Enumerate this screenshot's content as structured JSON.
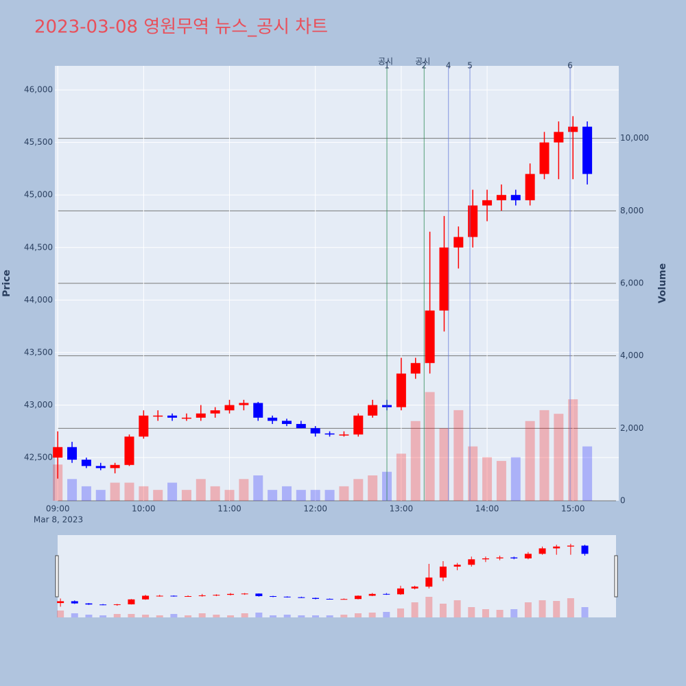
{
  "chart_data": {
    "type": "candlestick",
    "title": "2023-03-08 영원무역 뉴스_공시 차트",
    "y_label": "Price",
    "y2_label": "Volume",
    "x_date_label": "Mar 8, 2023",
    "x": [
      "09:00",
      "09:10",
      "09:20",
      "09:30",
      "09:40",
      "09:50",
      "10:00",
      "10:10",
      "10:20",
      "10:30",
      "10:40",
      "10:50",
      "11:00",
      "11:10",
      "11:20",
      "11:30",
      "11:40",
      "11:50",
      "12:00",
      "12:10",
      "12:20",
      "12:30",
      "12:40",
      "12:50",
      "13:00",
      "13:10",
      "13:20",
      "13:30",
      "13:40",
      "13:50",
      "14:00",
      "14:10",
      "14:20",
      "14:30",
      "14:40",
      "14:50",
      "15:00",
      "15:10"
    ],
    "open": [
      42500,
      42600,
      42480,
      42420,
      42400,
      42430,
      42700,
      42900,
      42900,
      42880,
      42880,
      42920,
      42950,
      43000,
      43020,
      42880,
      42850,
      42820,
      42780,
      42730,
      42720,
      42720,
      42900,
      43000,
      42980,
      43300,
      43400,
      43900,
      44500,
      44600,
      44900,
      44950,
      45000,
      44950,
      45200,
      45500,
      45600,
      45650
    ],
    "high": [
      42750,
      42650,
      42500,
      42450,
      42450,
      42720,
      42950,
      42950,
      42920,
      42920,
      43000,
      42980,
      43050,
      43050,
      43030,
      42900,
      42870,
      42850,
      42800,
      42750,
      42750,
      42920,
      43050,
      43050,
      43450,
      43450,
      44650,
      44800,
      44700,
      45050,
      45050,
      45100,
      45050,
      45300,
      45600,
      45700,
      45750,
      45700
    ],
    "low": [
      42300,
      42450,
      42400,
      42380,
      42350,
      42420,
      42680,
      42850,
      42850,
      42850,
      42850,
      42880,
      42920,
      42950,
      42850,
      42820,
      42800,
      42780,
      42700,
      42700,
      42700,
      42700,
      42880,
      42950,
      42950,
      43250,
      43300,
      43700,
      44300,
      44500,
      44750,
      44850,
      44900,
      44900,
      45150,
      45150,
      45150,
      45100
    ],
    "close": [
      42600,
      42480,
      42420,
      42400,
      42430,
      42700,
      42900,
      42900,
      42880,
      42880,
      42920,
      42950,
      43000,
      43020,
      42880,
      42850,
      42820,
      42780,
      42730,
      42720,
      42720,
      42900,
      43000,
      42980,
      43300,
      43400,
      43900,
      44500,
      44600,
      44900,
      44950,
      45000,
      44950,
      45200,
      45500,
      45600,
      45650,
      45200
    ],
    "volume": [
      1000,
      600,
      400,
      300,
      500,
      500,
      400,
      300,
      500,
      300,
      600,
      400,
      300,
      600,
      700,
      300,
      400,
      300,
      300,
      300,
      400,
      600,
      700,
      800,
      1300,
      2200,
      3000,
      2000,
      2500,
      1500,
      1200,
      1100,
      1200,
      2200,
      2500,
      2400,
      2800,
      1500
    ],
    "up_color": "#ff0000",
    "down_color": "#0000ff",
    "xlim": [
      "08:58",
      "15:32"
    ],
    "xticks": [
      "09:00",
      "10:00",
      "11:00",
      "12:00",
      "13:00",
      "14:00",
      "15:00"
    ],
    "ylim": [
      42089,
      46229
    ],
    "yticks": [
      {
        "value": 42500,
        "label": "42,500"
      },
      {
        "value": 43000,
        "label": "43,000"
      },
      {
        "value": 43500,
        "label": "43,500"
      },
      {
        "value": 44000,
        "label": "44,000"
      },
      {
        "value": 44500,
        "label": "44,500"
      },
      {
        "value": 45000,
        "label": "45,000"
      },
      {
        "value": 45500,
        "label": "45,500"
      },
      {
        "value": 46000,
        "label": "46,000"
      }
    ],
    "y2lim": [
      0,
      12000
    ],
    "y2ticks": [
      0,
      {
        "value": 2000,
        "label": "2,000"
      },
      {
        "value": 4000,
        "label": "4,000"
      },
      {
        "value": 6000,
        "label": "6,000"
      },
      {
        "value": 8000,
        "label": "8,000"
      },
      {
        "value": 10000,
        "label": "10,000"
      }
    ],
    "grid": true,
    "annotations": [
      {
        "x": "12:50",
        "label": "1",
        "text": "공시",
        "color": "#2e8b57"
      },
      {
        "x": "13:16",
        "label": "2",
        "text": "공시",
        "color": "#2e8b57"
      },
      {
        "x": "13:33",
        "label": "4",
        "color": "#6a7fdb"
      },
      {
        "x": "13:48",
        "label": "5",
        "color": "#6a7fdb"
      },
      {
        "x": "14:58",
        "label": "6",
        "color": "#6a7fdb"
      }
    ]
  }
}
